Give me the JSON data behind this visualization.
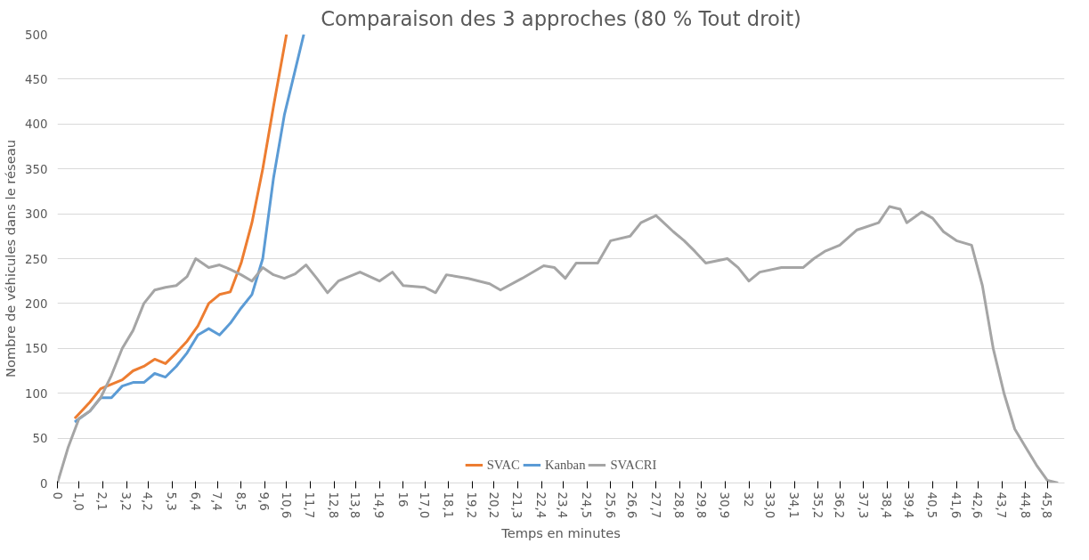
{
  "chart_data": {
    "type": "line",
    "title": "Comparaison des 3 approches (80 % Tout droit)",
    "xlabel": "Temps en minutes",
    "ylabel": "Nombre de véhicules dans le réseau",
    "xlim": [
      0,
      46.6
    ],
    "ylim": [
      0,
      500
    ],
    "yticks": [
      0,
      50,
      100,
      150,
      200,
      250,
      300,
      350,
      400,
      450,
      500
    ],
    "xticks": [
      0,
      {
        "value": 1.0,
        "label": "1,0"
      },
      {
        "value": 2.1,
        "label": "2,1"
      },
      {
        "value": 3.2,
        "label": "3,2"
      },
      {
        "value": 4.2,
        "label": "4,2"
      },
      {
        "value": 5.3,
        "label": "5,3"
      },
      {
        "value": 6.4,
        "label": "6,4"
      },
      {
        "value": 7.4,
        "label": "7,4"
      },
      {
        "value": 8.5,
        "label": "8,5"
      },
      {
        "value": 9.6,
        "label": "9,6"
      },
      {
        "value": 10.6,
        "label": "10,6"
      },
      {
        "value": 11.7,
        "label": "11,7"
      },
      {
        "value": 12.8,
        "label": "12,8"
      },
      {
        "value": 13.8,
        "label": "13,8"
      },
      {
        "value": 14.9,
        "label": "14,9"
      },
      16,
      {
        "value": 17.0,
        "label": "17,0"
      },
      {
        "value": 18.1,
        "label": "18,1"
      },
      {
        "value": 19.2,
        "label": "19,2"
      },
      {
        "value": 20.2,
        "label": "20,2"
      },
      {
        "value": 21.3,
        "label": "21,3"
      },
      {
        "value": 22.4,
        "label": "22,4"
      },
      {
        "value": 23.4,
        "label": "23,4"
      },
      {
        "value": 24.5,
        "label": "24,5"
      },
      {
        "value": 25.6,
        "label": "25,6"
      },
      {
        "value": 26.6,
        "label": "26,6"
      },
      {
        "value": 27.7,
        "label": "27,7"
      },
      {
        "value": 28.8,
        "label": "28,8"
      },
      {
        "value": 29.8,
        "label": "29,8"
      },
      {
        "value": 30.9,
        "label": "30,9"
      },
      32,
      {
        "value": 33.0,
        "label": "33,0"
      },
      {
        "value": 34.1,
        "label": "34,1"
      },
      {
        "value": 35.2,
        "label": "35,2"
      },
      {
        "value": 36.2,
        "label": "36,2"
      },
      {
        "value": 37.3,
        "label": "37,3"
      },
      {
        "value": 38.4,
        "label": "38,4"
      },
      {
        "value": 39.4,
        "label": "39,4"
      },
      {
        "value": 40.5,
        "label": "40,5"
      },
      {
        "value": 41.6,
        "label": "41,6"
      },
      {
        "value": 42.6,
        "label": "42,6"
      },
      {
        "value": 43.7,
        "label": "43,7"
      },
      {
        "value": 44.8,
        "label": "44,8"
      },
      {
        "value": 45.8,
        "label": "45,8"
      }
    ],
    "grid": "y",
    "legend": "bottom",
    "marker": "none",
    "line_style": "solid",
    "series": [
      {
        "name": "SVAC",
        "color": "#ed7d31",
        "x": [
          0.8,
          1.5,
          2,
          2.5,
          3,
          3.5,
          4,
          4.5,
          5,
          5.5,
          6,
          6.5,
          7,
          7.5,
          8,
          8.5,
          9,
          9.5,
          10,
          10.3,
          10.6
        ],
        "values": [
          72,
          90,
          105,
          110,
          115,
          125,
          130,
          138,
          133,
          145,
          158,
          175,
          200,
          210,
          213,
          245,
          290,
          350,
          420,
          460,
          500
        ]
      },
      {
        "name": "Kanban",
        "color": "#5b9bd5",
        "x": [
          0.8,
          1.5,
          2,
          2.5,
          3,
          3.5,
          4,
          4.5,
          5,
          5.5,
          6,
          6.5,
          7,
          7.5,
          8,
          8.5,
          9,
          9.5,
          10,
          10.5,
          11,
          11.4
        ],
        "values": [
          68,
          80,
          95,
          95,
          108,
          112,
          112,
          122,
          118,
          130,
          145,
          165,
          172,
          165,
          178,
          195,
          210,
          250,
          340,
          410,
          460,
          500
        ]
      },
      {
        "name": "SVACRI",
        "color": "#a5a5a5",
        "x": [
          0,
          0.5,
          1,
          1.5,
          2,
          2.5,
          3,
          3.5,
          4,
          4.5,
          5,
          5.5,
          6,
          6.4,
          7,
          7.5,
          8,
          8.5,
          9,
          9.5,
          10,
          10.5,
          11,
          11.5,
          12,
          12.5,
          13,
          14,
          14.9,
          15.5,
          16,
          17,
          17.5,
          18,
          19,
          20,
          20.5,
          21.5,
          22.5,
          23,
          23.5,
          24,
          25,
          25.6,
          26.5,
          27,
          27.7,
          28.5,
          29,
          29.5,
          30,
          31,
          31.5,
          32,
          32.5,
          33.5,
          34.5,
          35,
          35.5,
          36.2,
          37,
          38,
          38.5,
          39,
          39.3,
          40,
          40.5,
          41,
          41.6,
          42.3,
          42.8,
          43.3,
          43.8,
          44.3,
          44.8,
          45.3,
          45.8,
          46.3
        ],
        "values": [
          0,
          40,
          72,
          80,
          95,
          120,
          150,
          170,
          200,
          215,
          218,
          220,
          230,
          250,
          240,
          243,
          238,
          232,
          225,
          240,
          232,
          228,
          233,
          243,
          228,
          212,
          225,
          235,
          225,
          235,
          220,
          218,
          212,
          232,
          228,
          222,
          215,
          228,
          242,
          240,
          228,
          245,
          245,
          270,
          275,
          290,
          298,
          280,
          270,
          258,
          245,
          250,
          240,
          225,
          235,
          240,
          240,
          250,
          258,
          265,
          282,
          290,
          308,
          305,
          290,
          302,
          295,
          280,
          270,
          265,
          220,
          150,
          100,
          60,
          40,
          20,
          3,
          0
        ]
      }
    ]
  }
}
